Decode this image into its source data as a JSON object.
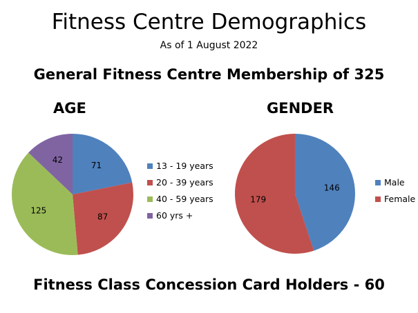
{
  "header": {
    "title": "Fitness Centre Demographics",
    "subtitle": "As of 1 August 2022",
    "membership": "General Fitness Centre Membership of 325",
    "concession": "Fitness Class Concession Card Holders -  60"
  },
  "chart_data": [
    {
      "type": "pie",
      "title": "AGE",
      "categories": [
        "13 - 19 years",
        "20 - 39 years",
        "40 - 59 years",
        "60 yrs +"
      ],
      "values": [
        71,
        87,
        125,
        42
      ],
      "colors": [
        "#4F81BD",
        "#C0504D",
        "#9BBB59",
        "#8064A2"
      ],
      "legend": "right",
      "data_labels": true
    },
    {
      "type": "pie",
      "title": "GENDER",
      "categories": [
        "Male",
        "Female"
      ],
      "values": [
        146,
        179
      ],
      "colors": [
        "#4F81BD",
        "#C0504D"
      ],
      "legend": "right",
      "data_labels": true
    }
  ]
}
